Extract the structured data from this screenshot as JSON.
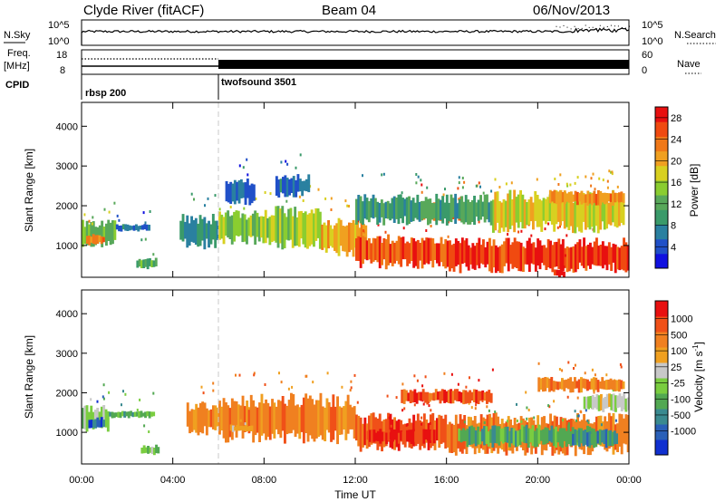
{
  "header": {
    "station": "Clyde River (fitACF)",
    "beam": "Beam 04",
    "date": "06/Nov/2013"
  },
  "noise_panel": {
    "left_label": "N.Sky",
    "left_ticks": [
      "10^5",
      "10^0"
    ],
    "right_ticks": [
      "10^5",
      "10^0"
    ],
    "right_label": "N.Search",
    "series": [
      {
        "name": "N.Sky",
        "style": "solid"
      },
      {
        "name": "N.Search",
        "style": "dotted"
      }
    ]
  },
  "freq_panel": {
    "left_label_line1": "Freq.",
    "left_label_line2": "[MHz]",
    "left_ticks": [
      "18",
      "8"
    ],
    "right_ticks": [
      "60",
      "0"
    ],
    "right_label": "Nave",
    "freq_mhz": 10,
    "nave_early": 50,
    "nave_late": 40
  },
  "cpid": {
    "label": "CPID",
    "programs": [
      {
        "name": "rbsp 200",
        "start_hour": 0
      },
      {
        "name": "twofsound 3501",
        "start_hour": 6
      }
    ]
  },
  "chart_data": [
    {
      "type": "heatmap",
      "ylabel": "Slant Range [km]",
      "xlabel": "Time UT",
      "xticks": [
        "00:00",
        "04:00",
        "08:00",
        "12:00",
        "16:00",
        "20:00",
        "00:00"
      ],
      "xlim": [
        0,
        24
      ],
      "ylim": [
        200,
        4600
      ],
      "yticks": [
        "1000",
        "2000",
        "3000",
        "4000"
      ],
      "colorbar": {
        "label": "Power [dB]",
        "ticks": [
          "4",
          "8",
          "12",
          "16",
          "20",
          "24",
          "28"
        ],
        "range": [
          0,
          30
        ],
        "colors": [
          "#1010e0",
          "#2050c8",
          "#2a80a0",
          "#3a9a6a",
          "#58a85a",
          "#8acd30",
          "#d8d020",
          "#f0a020",
          "#f07818",
          "#f04a10",
          "#e81010"
        ]
      },
      "regions": [
        {
          "t0": 0.0,
          "t1": 1.5,
          "r0": 950,
          "r1": 1650,
          "value": 14
        },
        {
          "t0": 0.2,
          "t1": 1.0,
          "r0": 1000,
          "r1": 1300,
          "value": 22
        },
        {
          "t0": 1.5,
          "t1": 3.0,
          "r0": 1350,
          "r1": 1550,
          "value": 6
        },
        {
          "t0": 2.4,
          "t1": 3.3,
          "r0": 400,
          "r1": 700,
          "value": 12
        },
        {
          "t0": 4.3,
          "t1": 6.0,
          "r0": 900,
          "r1": 1800,
          "value": 8
        },
        {
          "t0": 6.0,
          "t1": 8.2,
          "r0": 1000,
          "r1": 1900,
          "value": 14
        },
        {
          "t0": 6.3,
          "t1": 7.6,
          "r0": 2000,
          "r1": 2700,
          "value": 6
        },
        {
          "t0": 8.2,
          "t1": 10.5,
          "r0": 900,
          "r1": 2000,
          "value": 16
        },
        {
          "t0": 8.5,
          "t1": 10.0,
          "r0": 2200,
          "r1": 2800,
          "value": 6
        },
        {
          "t0": 10.5,
          "t1": 12.5,
          "r0": 700,
          "r1": 1700,
          "value": 20
        },
        {
          "t0": 12.0,
          "t1": 16.0,
          "r0": 400,
          "r1": 1300,
          "value": 26
        },
        {
          "t0": 16.0,
          "t1": 24.0,
          "r0": 300,
          "r1": 1200,
          "value": 27
        },
        {
          "t0": 14.5,
          "t1": 17.5,
          "r0": 1600,
          "r1": 2100,
          "value": 25
        },
        {
          "t0": 18.0,
          "t1": 23.8,
          "r0": 1300,
          "r1": 2400,
          "value": 18
        },
        {
          "t0": 20.5,
          "t1": 23.8,
          "r0": 2000,
          "r1": 2400,
          "value": 22
        },
        {
          "t0": 12.0,
          "t1": 18.0,
          "r0": 1500,
          "r1": 2300,
          "value": 10
        },
        {
          "t0": 20.7,
          "t1": 21.2,
          "r0": 200,
          "r1": 400,
          "value": 29
        }
      ]
    },
    {
      "type": "heatmap",
      "ylabel": "Slant Range [km]",
      "xlabel": "Time UT",
      "xticks": [
        "00:00",
        "04:00",
        "08:00",
        "12:00",
        "16:00",
        "20:00",
        "00:00"
      ],
      "xlim": [
        0,
        24
      ],
      "ylim": [
        200,
        4600
      ],
      "yticks": [
        "1000",
        "2000",
        "3000",
        "4000"
      ],
      "colorbar": {
        "label": "Velocity [m s^-1]",
        "ticks": [
          "1000",
          "500",
          "100",
          "25",
          "-25",
          "-100",
          "-500",
          "-1000"
        ],
        "colors": [
          "#1030d0",
          "#2a60b8",
          "#3a8a90",
          "#52a852",
          "#7acd40",
          "#c8c8c8",
          "#f0a020",
          "#f08020",
          "#f05018",
          "#e81010"
        ]
      },
      "regions": [
        {
          "t0": 0.0,
          "t1": 1.2,
          "r0": 1000,
          "r1": 1700,
          "value": 4
        },
        {
          "t0": 0.3,
          "t1": 1.0,
          "r0": 1100,
          "r1": 1400,
          "value": 1
        },
        {
          "t0": 1.2,
          "t1": 3.2,
          "r0": 1350,
          "r1": 1550,
          "value": 3
        },
        {
          "t0": 2.6,
          "t1": 3.4,
          "r0": 400,
          "r1": 700,
          "value": 4
        },
        {
          "t0": 4.6,
          "t1": 6.0,
          "r0": 900,
          "r1": 1800,
          "value": 7
        },
        {
          "t0": 6.0,
          "t1": 12.0,
          "r0": 700,
          "r1": 2000,
          "value": 7
        },
        {
          "t0": 6.5,
          "t1": 7.5,
          "r0": 1000,
          "r1": 1200,
          "value": 6
        },
        {
          "t0": 12.0,
          "t1": 16.0,
          "r0": 500,
          "r1": 1500,
          "value": 8
        },
        {
          "t0": 12.5,
          "t1": 15.5,
          "r0": 700,
          "r1": 1100,
          "value": 9
        },
        {
          "t0": 16.0,
          "t1": 24.0,
          "r0": 400,
          "r1": 1500,
          "value": 7
        },
        {
          "t0": 16.5,
          "t1": 22.5,
          "r0": 600,
          "r1": 1200,
          "value": 3
        },
        {
          "t0": 21.5,
          "t1": 23.5,
          "r0": 600,
          "r1": 1100,
          "value": 2
        },
        {
          "t0": 22.0,
          "t1": 24.0,
          "r0": 1500,
          "r1": 2000,
          "value": 5
        },
        {
          "t0": 20.0,
          "t1": 23.8,
          "r0": 2000,
          "r1": 2400,
          "value": 7
        },
        {
          "t0": 14.0,
          "t1": 18.0,
          "r0": 1700,
          "r1": 2100,
          "value": 8
        }
      ]
    }
  ]
}
